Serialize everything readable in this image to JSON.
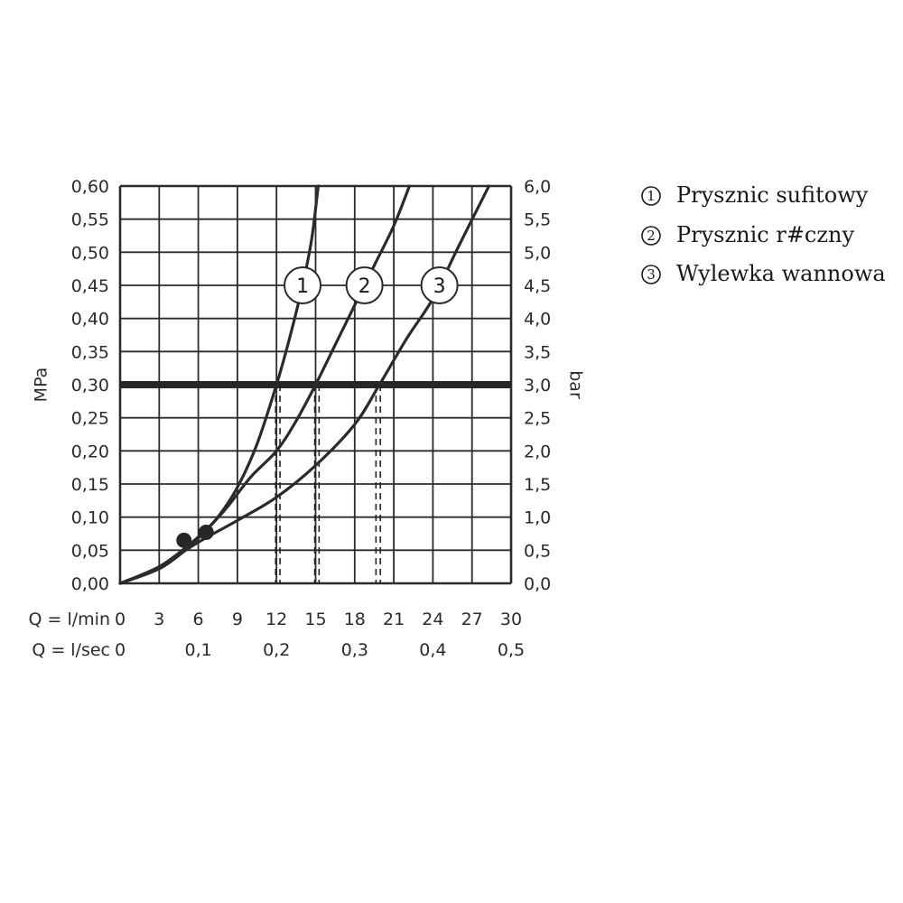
{
  "chart_data": {
    "type": "line",
    "ylabel_left": "MPa",
    "ylabel_right": "bar",
    "x_row_labels": [
      "Q = l/min",
      "Q = l/sec"
    ],
    "x_ticks_lmin": [
      "0",
      "3",
      "6",
      "9",
      "12",
      "15",
      "18",
      "21",
      "24",
      "27",
      "30"
    ],
    "x_ticks_lsec": [
      "0",
      "0,1",
      "0,2",
      "0,3",
      "0,4",
      "0,5"
    ],
    "x_ticks_lsec_values": [
      0,
      6,
      12,
      18,
      24,
      30
    ],
    "y_ticks_mpa": [
      "0,00",
      "0,05",
      "0,10",
      "0,15",
      "0,20",
      "0,25",
      "0,30",
      "0,35",
      "0,40",
      "0,45",
      "0,50",
      "0,55",
      "0,60"
    ],
    "y_ticks_bar": [
      "0,0",
      "0,5",
      "1,0",
      "1,5",
      "2,0",
      "2,5",
      "3,0",
      "3,5",
      "4,0",
      "4,5",
      "5,0",
      "5,5",
      "6,0"
    ],
    "xlim": [
      0,
      30
    ],
    "ylim": [
      0,
      0.6
    ],
    "reference_line": {
      "y": 0.3
    },
    "grid": true,
    "series": [
      {
        "name": "1",
        "points": [
          [
            0,
            0
          ],
          [
            3,
            0.022
          ],
          [
            5,
            0.05
          ],
          [
            6,
            0.068
          ],
          [
            7.5,
            0.1
          ],
          [
            9,
            0.145
          ],
          [
            10.5,
            0.21
          ],
          [
            12,
            0.3
          ],
          [
            13,
            0.37
          ],
          [
            14,
            0.45
          ],
          [
            14.7,
            0.52
          ],
          [
            15.2,
            0.6
          ]
        ],
        "marker": [
          4.9,
          0.065
        ],
        "drop_x": 12.1
      },
      {
        "name": "2",
        "points": [
          [
            0,
            0
          ],
          [
            3,
            0.025
          ],
          [
            6,
            0.07
          ],
          [
            8,
            0.11
          ],
          [
            10,
            0.16
          ],
          [
            12,
            0.2
          ],
          [
            13.5,
            0.245
          ],
          [
            15,
            0.3
          ],
          [
            16.5,
            0.36
          ],
          [
            18,
            0.42
          ],
          [
            19.5,
            0.48
          ],
          [
            21,
            0.54
          ],
          [
            22.2,
            0.6
          ]
        ],
        "marker": [
          6.6,
          0.077
        ],
        "drop_x": 15.1
      },
      {
        "name": "3",
        "points": [
          [
            0,
            0
          ],
          [
            3,
            0.025
          ],
          [
            6,
            0.062
          ],
          [
            9,
            0.095
          ],
          [
            12,
            0.13
          ],
          [
            15,
            0.178
          ],
          [
            18,
            0.24
          ],
          [
            19.9,
            0.3
          ],
          [
            22,
            0.37
          ],
          [
            24,
            0.43
          ],
          [
            26,
            0.51
          ],
          [
            28.3,
            0.6
          ]
        ],
        "drop_x": 19.8
      }
    ]
  },
  "legend": {
    "items": [
      {
        "num": "1",
        "label": "Prysznic sufitowy"
      },
      {
        "num": "2",
        "label": "Prysznic r#czny"
      },
      {
        "num": "3",
        "label": "Wylewka wannowa"
      }
    ]
  }
}
